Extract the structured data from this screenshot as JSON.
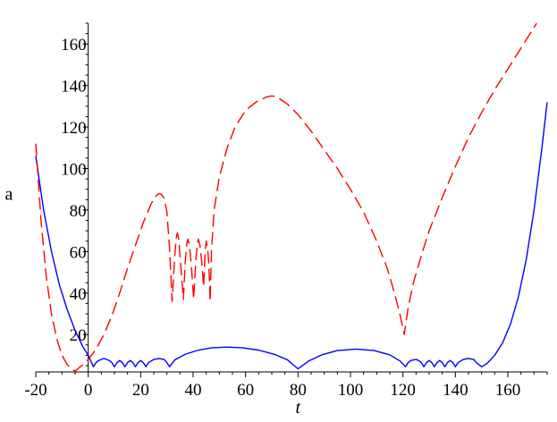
{
  "chart_data": {
    "type": "line",
    "title": "",
    "xlabel": "t",
    "ylabel": "a",
    "xlim": [
      -20,
      175
    ],
    "ylim": [
      2,
      170
    ],
    "x_ticks": [
      -20,
      0,
      20,
      40,
      60,
      80,
      100,
      120,
      140,
      160
    ],
    "x_tick_labels": [
      "-20",
      "0",
      "20",
      "40",
      "60",
      "80",
      "100",
      "120",
      "140",
      "160"
    ],
    "y_ticks": [
      20,
      40,
      60,
      80,
      100,
      120,
      140,
      160
    ],
    "y_tick_labels": [
      "20",
      "40",
      "60",
      "80",
      "100",
      "120",
      "140",
      "160"
    ],
    "grid": false,
    "legend": "none",
    "series": [
      {
        "color": "#0000ff",
        "style": "solid",
        "points": [
          [
            -20,
            106
          ],
          [
            -17,
            80
          ],
          [
            -14,
            60
          ],
          [
            -11,
            44
          ],
          [
            -8,
            32
          ],
          [
            -5,
            22
          ],
          [
            -2,
            14
          ],
          [
            0,
            10
          ],
          [
            2,
            4.5
          ],
          [
            3,
            6.5
          ],
          [
            4,
            7.5
          ],
          [
            6,
            8.5
          ],
          [
            8,
            7.5
          ],
          [
            9,
            6.5
          ],
          [
            10,
            4.5
          ],
          [
            11,
            6.5
          ],
          [
            12,
            7.5
          ],
          [
            13,
            6.5
          ],
          [
            14,
            4.5
          ],
          [
            15,
            6.5
          ],
          [
            16,
            7.5
          ],
          [
            17,
            6.5
          ],
          [
            18,
            4.5
          ],
          [
            19,
            6.5
          ],
          [
            20,
            7.5
          ],
          [
            21,
            6.5
          ],
          [
            22,
            4.5
          ],
          [
            23,
            6.5
          ],
          [
            25,
            8
          ],
          [
            27,
            8.5
          ],
          [
            29,
            8
          ],
          [
            30,
            6.5
          ],
          [
            31,
            4.5
          ],
          [
            33,
            7.8
          ],
          [
            37,
            10.5
          ],
          [
            42,
            12.5
          ],
          [
            47,
            13.6
          ],
          [
            53,
            14
          ],
          [
            59,
            13.6
          ],
          [
            65,
            12.5
          ],
          [
            71,
            10.5
          ],
          [
            76,
            7.8
          ],
          [
            80,
            3.5
          ],
          [
            84,
            7.2
          ],
          [
            89,
            10.2
          ],
          [
            95,
            12.3
          ],
          [
            102,
            13
          ],
          [
            109,
            12.3
          ],
          [
            115,
            10.2
          ],
          [
            119,
            7.2
          ],
          [
            121,
            4.5
          ],
          [
            122,
            6.5
          ],
          [
            123,
            7.5
          ],
          [
            125,
            8
          ],
          [
            126,
            7.5
          ],
          [
            127,
            6.5
          ],
          [
            128,
            4.5
          ],
          [
            129,
            6.5
          ],
          [
            130,
            7.5
          ],
          [
            131,
            6.5
          ],
          [
            132,
            4.5
          ],
          [
            133,
            6.5
          ],
          [
            134,
            7.5
          ],
          [
            135,
            6.5
          ],
          [
            136,
            4.5
          ],
          [
            137,
            6.5
          ],
          [
            138,
            7.5
          ],
          [
            139,
            6.5
          ],
          [
            140,
            4.5
          ],
          [
            141,
            6.5
          ],
          [
            143,
            8
          ],
          [
            145,
            8.5
          ],
          [
            147,
            8
          ],
          [
            148,
            6.5
          ],
          [
            150,
            4.5
          ],
          [
            152,
            6
          ],
          [
            155,
            10
          ],
          [
            158,
            16
          ],
          [
            161,
            25
          ],
          [
            164,
            38
          ],
          [
            167,
            56
          ],
          [
            170,
            80
          ],
          [
            173,
            110
          ],
          [
            175,
            132
          ]
        ]
      },
      {
        "color": "#ff0000",
        "style": "dashed",
        "points": [
          [
            -20,
            112
          ],
          [
            -18,
            75
          ],
          [
            -16,
            48
          ],
          [
            -14,
            30
          ],
          [
            -12,
            18
          ],
          [
            -10,
            10
          ],
          [
            -8,
            5.5
          ],
          [
            -6,
            3
          ],
          [
            -5,
            2.5
          ],
          [
            -4,
            3.5
          ],
          [
            -2,
            5.5
          ],
          [
            0,
            8
          ],
          [
            3,
            13
          ],
          [
            6,
            20
          ],
          [
            9,
            29
          ],
          [
            12,
            40
          ],
          [
            15,
            52
          ],
          [
            18,
            63
          ],
          [
            21,
            74
          ],
          [
            24,
            83
          ],
          [
            26,
            87
          ],
          [
            27,
            88
          ],
          [
            28,
            87.5
          ],
          [
            29,
            85.5
          ],
          [
            30,
            79
          ],
          [
            31,
            62
          ],
          [
            32,
            36
          ],
          [
            33,
            58
          ],
          [
            33.6,
            67
          ],
          [
            34,
            69
          ],
          [
            34.5,
            66
          ],
          [
            35.3,
            53
          ],
          [
            36.3,
            37
          ],
          [
            37,
            55
          ],
          [
            37.6,
            64
          ],
          [
            38,
            66
          ],
          [
            38.6,
            63
          ],
          [
            39.4,
            52
          ],
          [
            40.2,
            37
          ],
          [
            41,
            55
          ],
          [
            41.6,
            64
          ],
          [
            42,
            66
          ],
          [
            42.6,
            63
          ],
          [
            43.3,
            55
          ],
          [
            44,
            43
          ],
          [
            44.6,
            60
          ],
          [
            45,
            65
          ],
          [
            45.5,
            62
          ],
          [
            46,
            54
          ],
          [
            46.5,
            36
          ],
          [
            47,
            60
          ],
          [
            48,
            80
          ],
          [
            50,
            96
          ],
          [
            53,
            110
          ],
          [
            56,
            120
          ],
          [
            60,
            128
          ],
          [
            64,
            132
          ],
          [
            68,
            134.5
          ],
          [
            70,
            135
          ],
          [
            72,
            134.5
          ],
          [
            76,
            131
          ],
          [
            80,
            126
          ],
          [
            85,
            118
          ],
          [
            90,
            109
          ],
          [
            95,
            100
          ],
          [
            100,
            90
          ],
          [
            105,
            79
          ],
          [
            110,
            65
          ],
          [
            114,
            52
          ],
          [
            117,
            39
          ],
          [
            119,
            29
          ],
          [
            120.5,
            20
          ],
          [
            122,
            33
          ],
          [
            124,
            45
          ],
          [
            127,
            58
          ],
          [
            130,
            70
          ],
          [
            135,
            86
          ],
          [
            140,
            101
          ],
          [
            145,
            115
          ],
          [
            150,
            127
          ],
          [
            155,
            138
          ],
          [
            160,
            148
          ],
          [
            165,
            158
          ],
          [
            170,
            168
          ],
          [
            171,
            170
          ]
        ]
      }
    ]
  }
}
